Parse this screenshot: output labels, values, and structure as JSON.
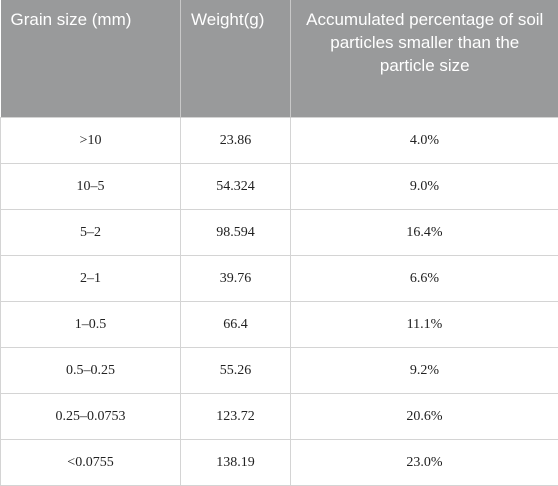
{
  "table": {
    "header": [
      "Grain size (mm)",
      "Weight(g)",
      "Accumulated percentage of soil particles smaller than the particle size"
    ],
    "rows": [
      [
        ">10",
        "23.86",
        "4.0%"
      ],
      [
        "10–5",
        "54.324",
        "9.0%"
      ],
      [
        "5–2",
        "98.594",
        "16.4%"
      ],
      [
        "2–1",
        "39.76",
        "6.6%"
      ],
      [
        "1–0.5",
        "66.4",
        "11.1%"
      ],
      [
        "0.5–0.25",
        "55.26",
        "9.2%"
      ],
      [
        "0.25–0.0753",
        "123.72",
        "20.6%"
      ],
      [
        "<0.0755",
        "138.19",
        "23.0%"
      ]
    ]
  }
}
